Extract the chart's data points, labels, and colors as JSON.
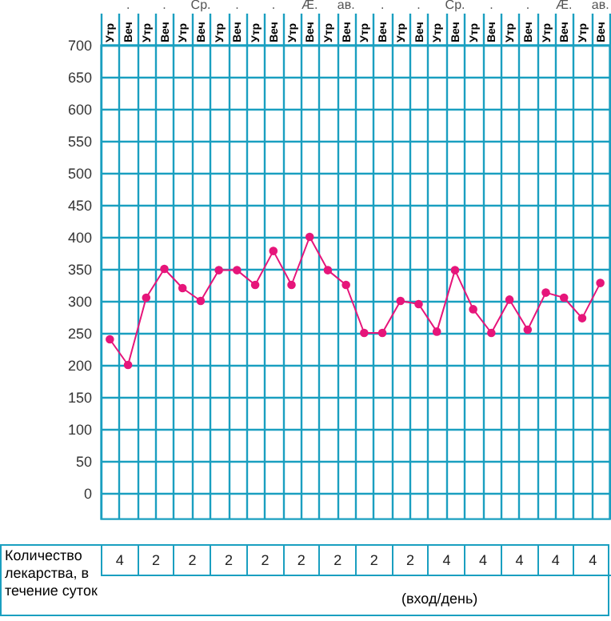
{
  "chart_data": [
    {
      "type": "line",
      "categories": [
        "Утр",
        "Веч",
        "Утр",
        "Веч",
        "Утр",
        "Веч",
        "Утр",
        "Веч",
        "Утр",
        "Веч",
        "Утр",
        "Веч",
        "Утр",
        "Веч",
        "Утр",
        "Веч",
        "Утр",
        "Веч",
        "Утр",
        "Веч",
        "Утр",
        "Веч",
        "Утр",
        "Веч",
        "Утр",
        "Веч",
        "Утр",
        "Веч"
      ],
      "values": [
        240,
        200,
        305,
        350,
        320,
        300,
        348,
        348,
        325,
        378,
        325,
        400,
        348,
        325,
        250,
        250,
        300,
        295,
        252,
        348,
        287,
        250,
        302,
        255,
        313,
        305,
        273,
        328
      ],
      "color": "#e6157a",
      "marker": "circle",
      "grid": true,
      "ylim": [
        -40,
        700
      ],
      "yticks": [
        0,
        50,
        100,
        150,
        200,
        250,
        300,
        350,
        400,
        450,
        500,
        550,
        600,
        650,
        700
      ],
      "annotations": [
        ".",
        ".",
        "Ср.",
        ".",
        ".",
        "Æ.",
        "ав.",
        ".",
        ".",
        "Ср.",
        ".",
        ".",
        "Æ.",
        "ав."
      ]
    },
    {
      "type": "other",
      "ylabel": "Количество лекарства, в течение суток",
      "categories": [
        null,
        null,
        null,
        null,
        null,
        null,
        null,
        null,
        null,
        null,
        null,
        null,
        null,
        null
      ],
      "values": [
        4,
        2,
        2,
        2,
        2,
        2,
        2,
        2,
        2,
        4,
        4,
        4,
        4,
        4
      ],
      "data_labels": true,
      "annotations": [
        "(вход/день)"
      ]
    }
  ]
}
